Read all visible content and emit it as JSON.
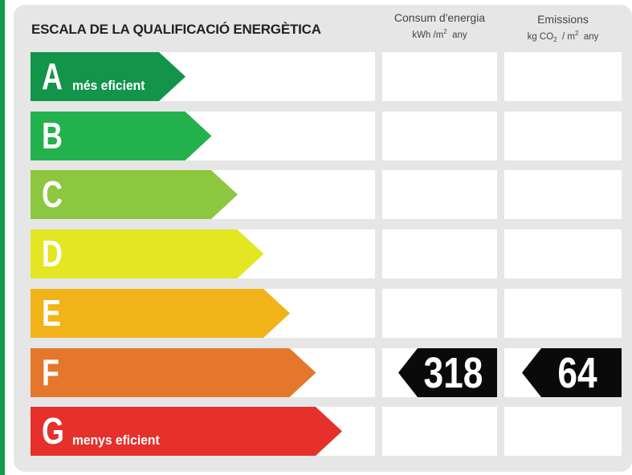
{
  "title": "ESCALA DE LA QUALIFICACIÓ ENERGÈTICA",
  "columns": {
    "consumption": {
      "title": "Consum d'energia",
      "unit_prefix": "kWh /m",
      "unit_sup": "2",
      "unit_suffix": "any"
    },
    "emissions": {
      "title": "Emissions",
      "unit_a": "kg CO",
      "unit_sub": "2",
      "unit_b": "/ m",
      "unit_sup": "2",
      "unit_suffix": "any"
    }
  },
  "chart_data": {
    "type": "table",
    "title": "ESCALA DE LA QUALIFICACIÓ ENERGÈTICA",
    "classes": [
      {
        "letter": "A",
        "label": "més eficient",
        "color": "#12944a"
      },
      {
        "letter": "B",
        "label": "",
        "color": "#22b14c"
      },
      {
        "letter": "C",
        "label": "",
        "color": "#8dc63f"
      },
      {
        "letter": "D",
        "label": "",
        "color": "#e3e620"
      },
      {
        "letter": "E",
        "label": "",
        "color": "#f0b418"
      },
      {
        "letter": "F",
        "label": "",
        "color": "#e5772b"
      },
      {
        "letter": "G",
        "label": "menys eficient",
        "color": "#e5302b"
      }
    ],
    "rating": "F",
    "consumption_value": "318",
    "emissions_value": "64"
  }
}
